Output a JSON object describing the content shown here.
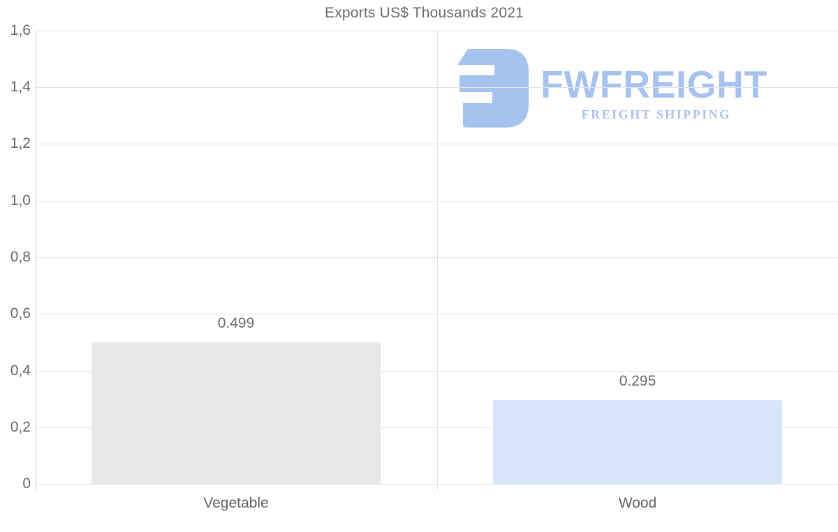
{
  "chart_data": {
    "type": "bar",
    "title": "Exports US$ Thousands 2021",
    "categories": [
      "Vegetable",
      "Wood"
    ],
    "values": [
      0.499,
      0.295
    ],
    "data_labels": [
      "0.499",
      "0.295"
    ],
    "bar_colors": [
      "#e8e8e8",
      "#d6e5f8"
    ],
    "xlabel": "",
    "ylabel": "",
    "ylim": [
      0,
      1.6
    ],
    "ytick_step": 0.2,
    "ytick_labels": [
      "0",
      "0,2",
      "0,4",
      "0,6",
      "0,8",
      "1,0",
      "1,2",
      "1,4",
      "1,6"
    ],
    "grid": true,
    "legend": false,
    "decimal_separator_axis": "comma",
    "decimal_separator_labels": "dot"
  },
  "watermark": {
    "wordmark": "FWFREIGHT",
    "tagline": "FREIGHT SHIPPING",
    "logo_mark": "fwfreight-logo-icon",
    "mark_color": "#a6c2ef",
    "wordmark_color": "#a7c2ef",
    "tagline_color": "#aec0e8"
  },
  "colors": {
    "background": "#ffffff",
    "title_text": "#6a6a6a",
    "axis_tick_text": "#666666",
    "category_text": "#616161",
    "value_label_text": "#6b6b6b",
    "gridline": "#e3e3e3",
    "axis_line": "#c6c6c6"
  }
}
